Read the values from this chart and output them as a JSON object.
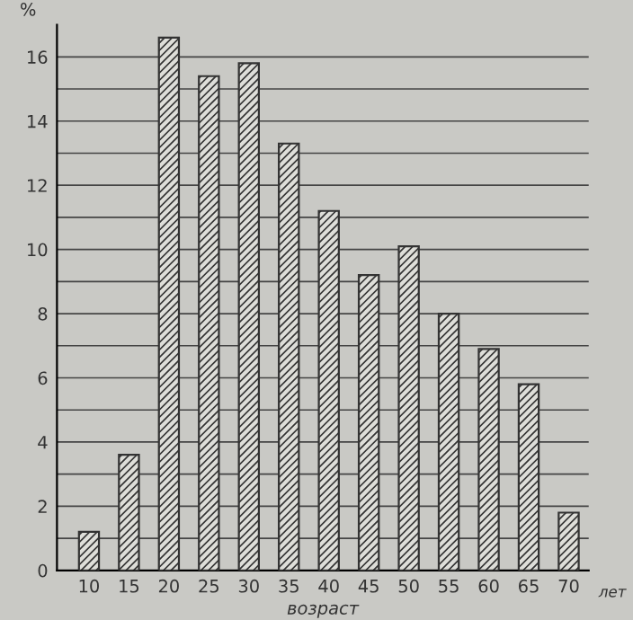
{
  "chart_data": {
    "type": "bar",
    "ylabel": "%",
    "xlabel": "возраст",
    "categories": [
      "10",
      "15",
      "20",
      "25",
      "30",
      "35",
      "40",
      "45",
      "50",
      "55",
      "60",
      "65",
      "70"
    ],
    "values": [
      1.2,
      3.6,
      16.6,
      15.4,
      15.8,
      13.3,
      11.2,
      9.2,
      10.1,
      8.0,
      6.9,
      5.8,
      1.8
    ],
    "color": "#333333",
    "ylim": [
      0,
      17
    ],
    "yticks": [
      0,
      {
        "value": 1,
        "label": null
      },
      2,
      {
        "value": 3,
        "label": null
      },
      4,
      {
        "value": 5,
        "label": null
      },
      6,
      {
        "value": 7,
        "label": null
      },
      8,
      {
        "value": 9,
        "label": null
      },
      10,
      {
        "value": 11,
        "label": null
      },
      12,
      {
        "value": 13,
        "label": null
      },
      14,
      {
        "value": 15,
        "label": null
      },
      16
    ],
    "grid": "y",
    "annotations": [
      "лет"
    ]
  }
}
